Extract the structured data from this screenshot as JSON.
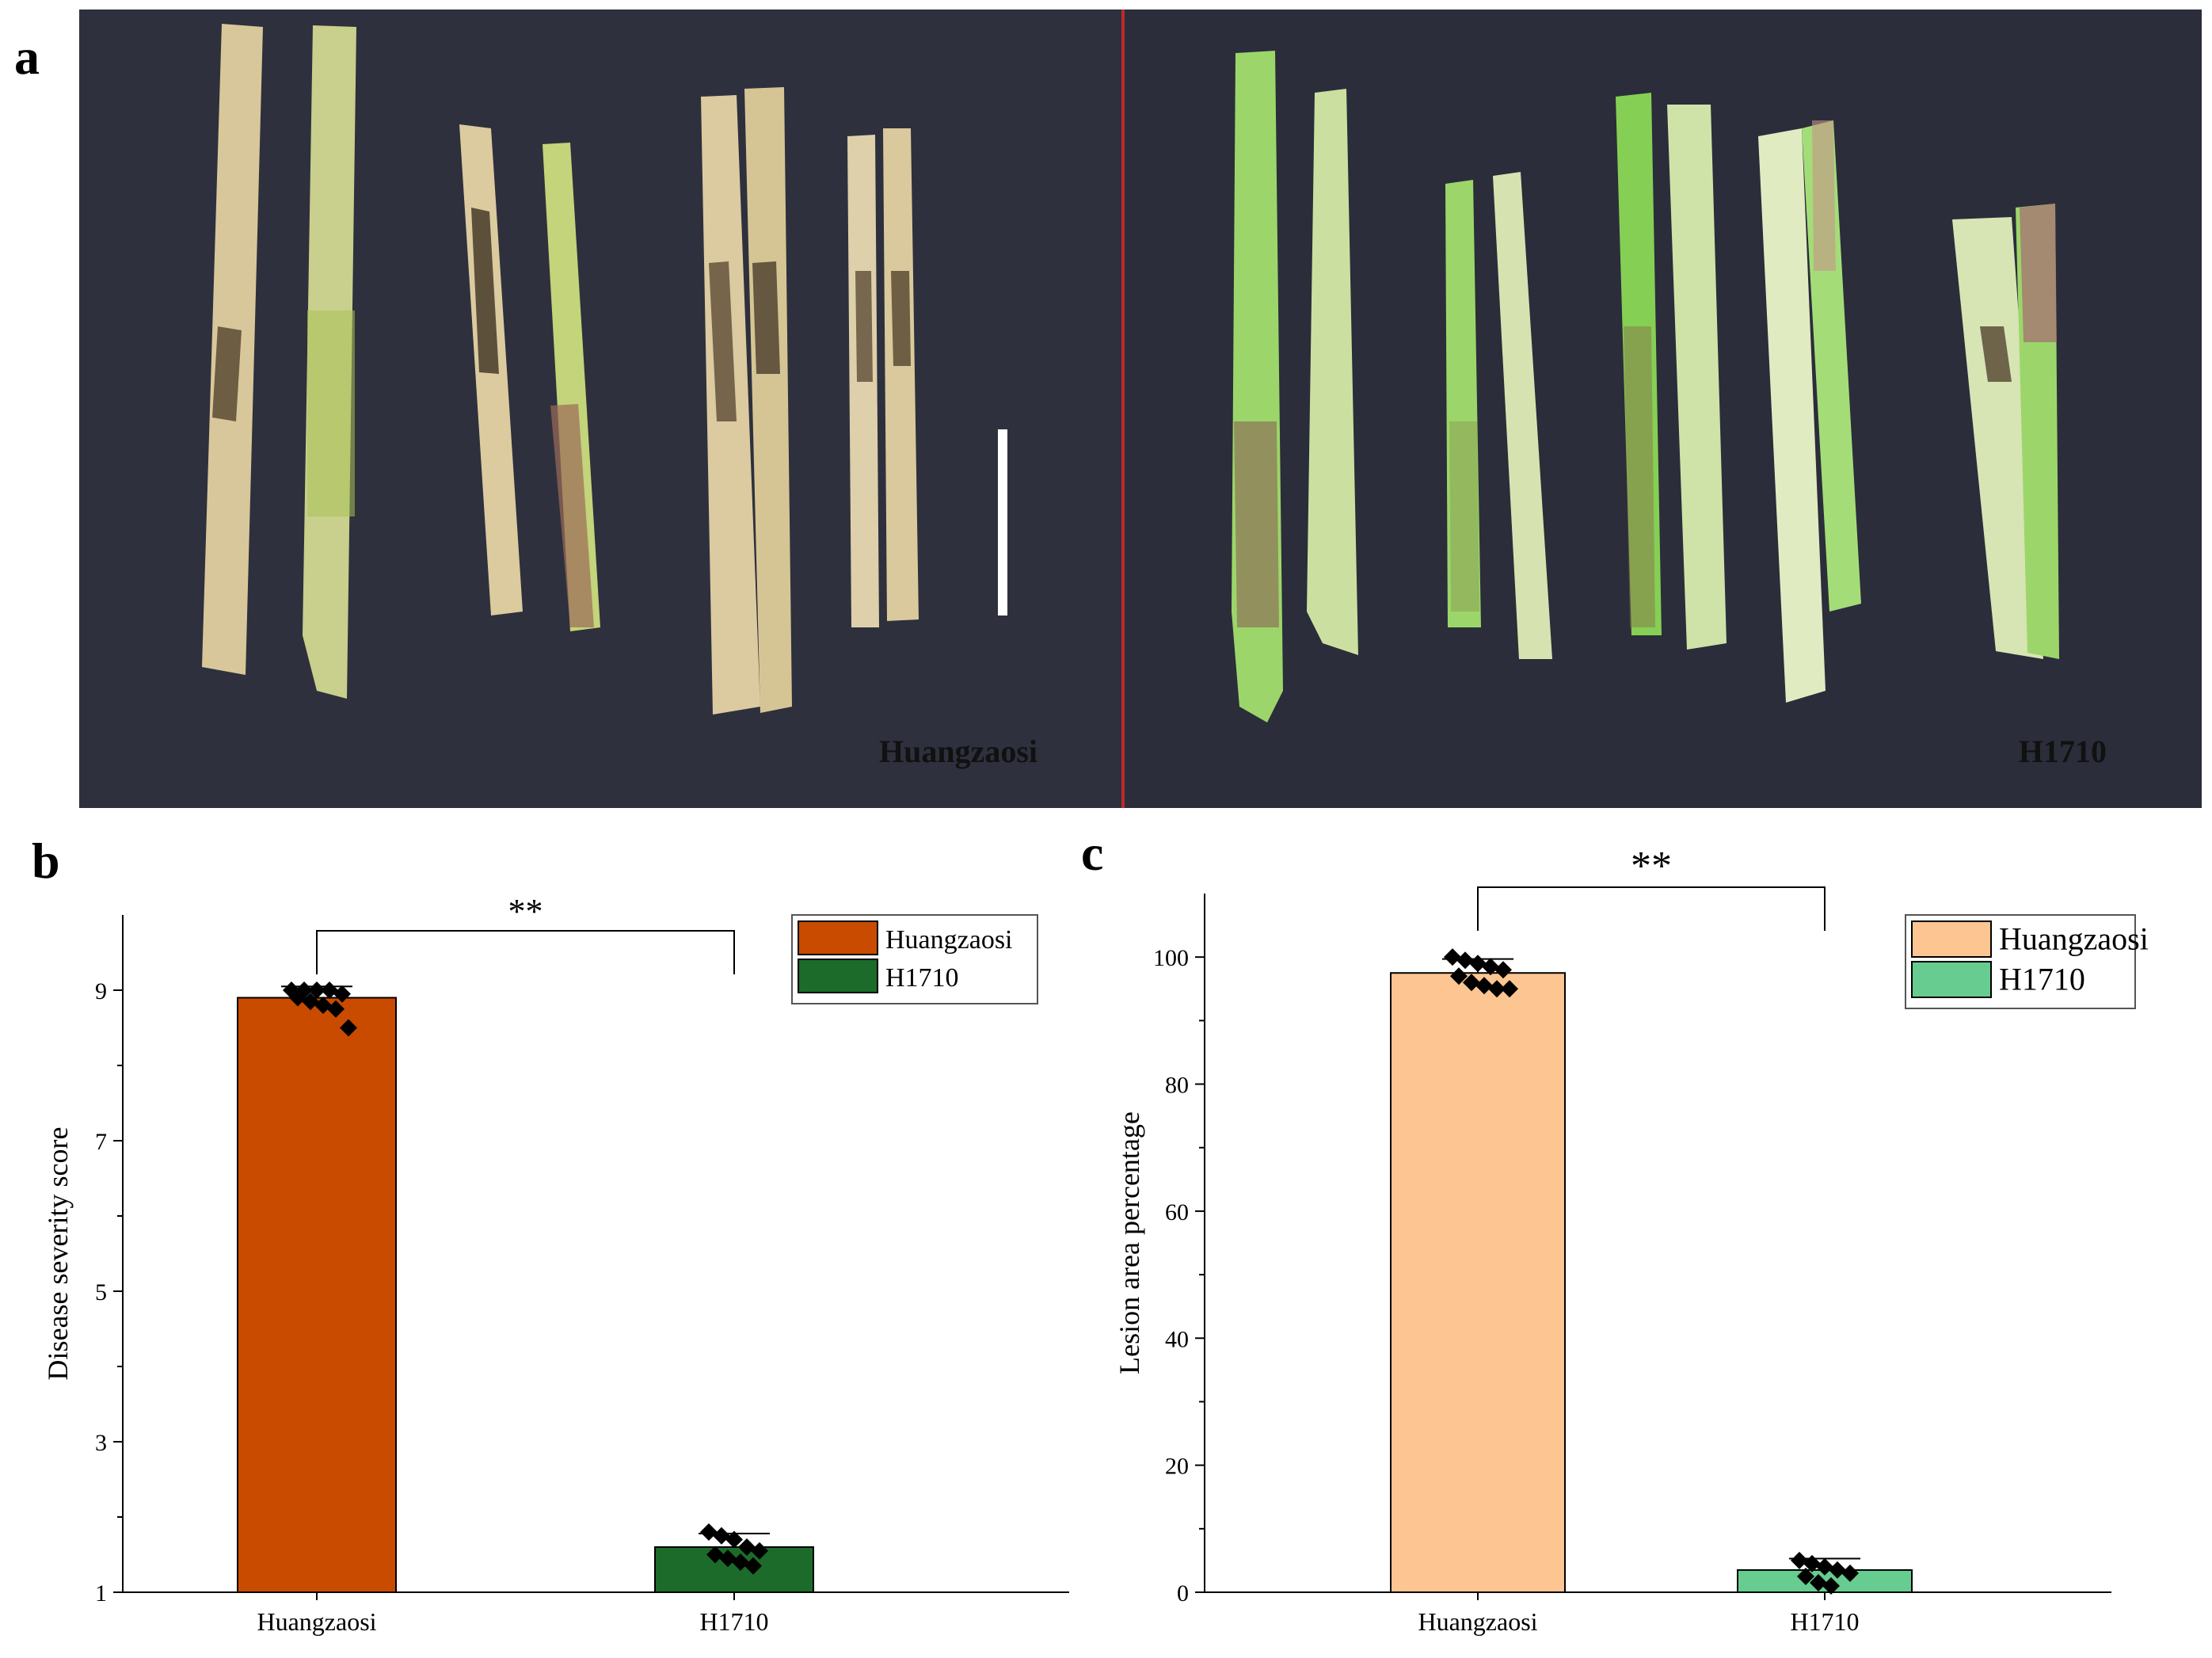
{
  "panels": {
    "a": "a",
    "b": "b",
    "c": "c"
  },
  "photo": {
    "label_left": "Huangzaosi",
    "label_right": "H1710",
    "background_color": "#2b2d3a",
    "divider_color": "#c0282d"
  },
  "chart_data": [
    {
      "type": "bar",
      "panel": "b",
      "categories": [
        "Huangzaosi",
        "H1710"
      ],
      "values": [
        8.9,
        1.6
      ],
      "errors": [
        0.15,
        0.18
      ],
      "points": [
        [
          9.0,
          9.0,
          9.0,
          9.0,
          8.95,
          8.9,
          8.85,
          8.8,
          8.75,
          8.5
        ],
        [
          1.8,
          1.75,
          1.7,
          1.6,
          1.55,
          1.5,
          1.45,
          1.4,
          1.35
        ]
      ],
      "colors": [
        "#c84b00",
        "#1d6b2a"
      ],
      "legend": [
        "Huangzaosi",
        "H1710"
      ],
      "legend_position": "top-right",
      "ylabel": "Disease severity score",
      "xlabel": "",
      "ylim": [
        1,
        10
      ],
      "yticks": [
        1,
        3,
        5,
        7,
        9
      ],
      "significance": "**"
    },
    {
      "type": "bar",
      "panel": "c",
      "categories": [
        "Huangzaosi",
        "H1710"
      ],
      "values": [
        97.5,
        3.5
      ],
      "errors": [
        2.2,
        1.8
      ],
      "points": [
        [
          100,
          99.5,
          99,
          98.5,
          98,
          97,
          96,
          95.5,
          95,
          95
        ],
        [
          5,
          4.5,
          4,
          3.5,
          3,
          2.5,
          1.5,
          1
        ]
      ],
      "colors": [
        "#fcc591",
        "#66cc8f"
      ],
      "legend": [
        "Huangzaosi",
        "H1710"
      ],
      "legend_position": "top-right",
      "ylabel": "Lesion area percentage",
      "xlabel": "",
      "ylim": [
        0,
        110
      ],
      "yticks": [
        0,
        20,
        40,
        60,
        80,
        100
      ],
      "significance": "**"
    }
  ]
}
